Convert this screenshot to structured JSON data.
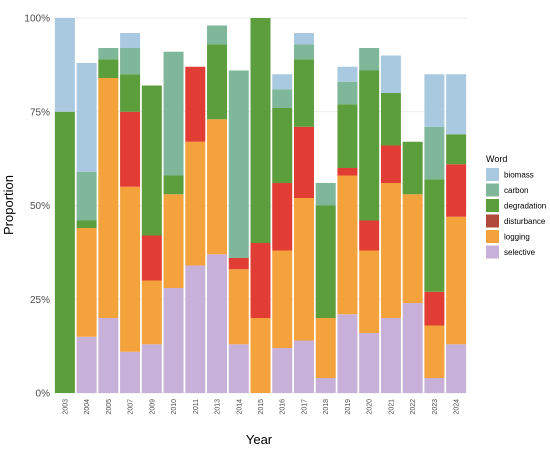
{
  "chart_data": {
    "type": "bar",
    "stacked": true,
    "orientation": "vertical",
    "xlabel": "Year",
    "ylabel": "Proportion",
    "ylim": [
      0,
      1
    ],
    "y_ticks": [
      "0%",
      "25%",
      "50%",
      "75%",
      "100%"
    ],
    "y_tick_values": [
      0,
      0.25,
      0.5,
      0.75,
      1.0
    ],
    "grid": true,
    "legend_title": "Word",
    "legend_position": "right",
    "categories": [
      "2003",
      "2004",
      "2005",
      "2007",
      "2009",
      "2010",
      "2011",
      "2013",
      "2014",
      "2015",
      "2016",
      "2017",
      "2018",
      "2019",
      "2020",
      "2021",
      "2022",
      "2023",
      "2024"
    ],
    "series": [
      {
        "name": "biomass",
        "color": "#a9c9e0",
        "values": [
          0.25,
          0.29,
          0.0,
          0.04,
          0.0,
          0.0,
          0.0,
          0.0,
          0.0,
          0.0,
          0.04,
          0.03,
          0.0,
          0.04,
          0.0,
          0.1,
          0.0,
          0.14,
          0.16
        ]
      },
      {
        "name": "carbon",
        "color": "#7fb79b",
        "values": [
          0.0,
          0.13,
          0.03,
          0.07,
          0.0,
          0.33,
          0.0,
          0.05,
          0.5,
          0.0,
          0.05,
          0.04,
          0.06,
          0.06,
          0.06,
          0.0,
          0.0,
          0.14,
          0.0
        ]
      },
      {
        "name": "degradation",
        "color": "#5c9e3c",
        "values": [
          0.75,
          0.02,
          0.05,
          0.1,
          0.4,
          0.05,
          0.0,
          0.2,
          0.0,
          0.6,
          0.2,
          0.18,
          0.3,
          0.17,
          0.4,
          0.14,
          0.14,
          0.3,
          0.08
        ]
      },
      {
        "name": "disturbance",
        "color": "#b24a3a",
        "values": [
          0.0,
          0.0,
          0.0,
          0.0,
          0.0,
          0.0,
          0.0,
          0.0,
          0.0,
          0.0,
          0.0,
          0.0,
          0.0,
          0.0,
          0.0,
          0.0,
          0.0,
          0.0,
          0.0
        ]
      },
      {
        "name": "logging",
        "color": "#f4a23c",
        "values": [
          0.0,
          0.29,
          0.64,
          0.44,
          0.17,
          0.25,
          0.33,
          0.36,
          0.2,
          0.2,
          0.26,
          0.38,
          0.16,
          0.37,
          0.22,
          0.36,
          0.29,
          0.14,
          0.34
        ]
      },
      {
        "name": "selective",
        "color": "#c8b1d8",
        "values": [
          0.0,
          0.15,
          0.2,
          0.11,
          0.13,
          0.28,
          0.34,
          0.37,
          0.13,
          0.0,
          0.12,
          0.14,
          0.04,
          0.21,
          0.16,
          0.2,
          0.24,
          0.04,
          0.13
        ]
      }
    ],
    "disturbance_red": {
      "color": "#e23d35",
      "values": [
        0.0,
        0.0,
        0.0,
        0.2,
        0.12,
        0.0,
        0.2,
        0.0,
        0.03,
        0.2,
        0.18,
        0.19,
        0.0,
        0.02,
        0.08,
        0.1,
        0.0,
        0.09,
        0.14
      ]
    }
  }
}
